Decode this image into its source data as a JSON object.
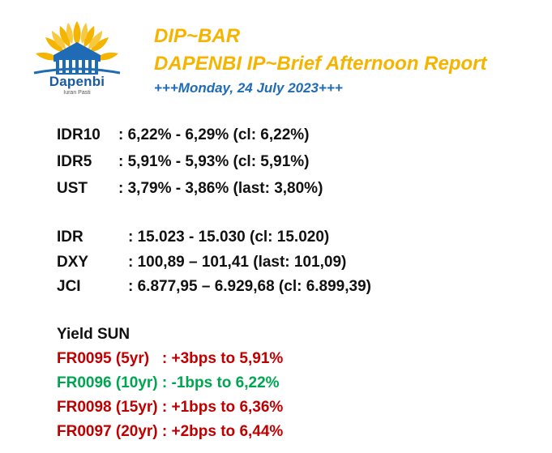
{
  "logo": {
    "wordmark": "Dapenbi",
    "tagline": "Iuran Pasti",
    "colors": {
      "sun": "#f5b400",
      "house": "#1f6bb5"
    }
  },
  "header": {
    "title": "DIP~BAR",
    "subtitle": "DAPENBI IP~Brief Afternoon Report",
    "date_line": "+++Monday, 24 July 2023+++"
  },
  "bonds": [
    {
      "label": "IDR10",
      "value": ": 6,22% - 6,29% (cl: 6,22%)"
    },
    {
      "label": "IDR5",
      "value": ": 5,91% - 5,93% (cl: 5,91%)"
    },
    {
      "label": "UST",
      "value": ": 3,79% - 3,86% (last: 3,80%)"
    }
  ],
  "markets": [
    {
      "label": "IDR",
      "value": ": 15.023 - 15.030 (cl: 15.020)"
    },
    {
      "label": "DXY",
      "value": ": 100,89 – 101,41 (last: 101,09)"
    },
    {
      "label": "JCI",
      "value": ": 6.877,95 – 6.929,68 (cl: 6.899,39)"
    }
  ],
  "yield_sun": {
    "heading": "Yield SUN",
    "items": [
      {
        "text": "FR0095 (5yr)   : +3bps to 5,91%",
        "color": "#c00000"
      },
      {
        "text": "FR0096 (10yr) : -1bps to 6,22%",
        "color": "#00a550"
      },
      {
        "text": "FR0098 (15yr) : +1bps to 6,36%",
        "color": "#c00000"
      },
      {
        "text": "FR0097 (20yr) : +2bps to 6,44%",
        "color": "#c00000"
      }
    ]
  }
}
